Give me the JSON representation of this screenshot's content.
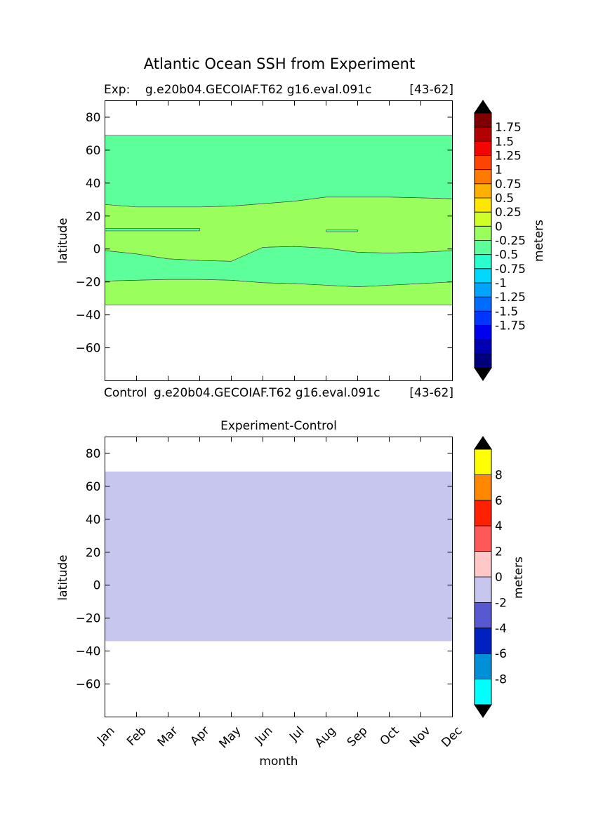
{
  "figure": {
    "suptitle": "Atlantic Ocean SSH from Experiment"
  },
  "chart_data": [
    {
      "type": "heatmap",
      "panel": "experiment",
      "title_left": "Exp:    g.e20b04.GECOIAF.T62 g16.eval.091c",
      "title_right": "[43-62]",
      "xlabel": "",
      "ylabel": "latitude",
      "ylim": [
        -80,
        90
      ],
      "yticks": [
        80,
        60,
        40,
        20,
        0,
        -20,
        -40,
        -60
      ],
      "x": [
        "Jan",
        "Feb",
        "Mar",
        "Apr",
        "May",
        "Jun",
        "Jul",
        "Aug",
        "Sep",
        "Oct",
        "Nov",
        "Dec"
      ],
      "colorbar": {
        "label": "meters",
        "tick_labels": [
          "1.75",
          "1.5",
          "1.25",
          "1",
          "0.75",
          "0.5",
          "0.25",
          "0",
          "-0.25",
          "-0.5",
          "-0.75",
          "-1",
          "-1.25",
          "-1.5",
          "-1.75"
        ],
        "levels": [
          -2,
          -1.75,
          -1.5,
          -1.25,
          -1,
          -0.75,
          -0.5,
          -0.25,
          0,
          0.25,
          0.5,
          0.75,
          1,
          1.25,
          1.5,
          1.75,
          2
        ],
        "colors": [
          "#00007f",
          "#0000b2",
          "#0000f1",
          "#0034ff",
          "#006cff",
          "#00a4ff",
          "#00d8ff",
          "#29ffce",
          "#5dff9a",
          "#9aff5d",
          "#ceff29",
          "#ffe600",
          "#ffb000",
          "#ff7a00",
          "#ff4300",
          "#f10700",
          "#b20000",
          "#7f0000"
        ],
        "extend_colors": [
          "#000000",
          "#000000"
        ]
      },
      "data_extent": {
        "lat_min": -34,
        "lat_max": 69
      },
      "regions": [
        {
          "name": "north",
          "range": "-0.25 to 0",
          "color": "#5dff9a",
          "lat_top": 69,
          "lat_bottom": [
            27,
            25.5,
            25.5,
            25.5,
            26,
            27.5,
            29,
            31.5,
            31.5,
            31.5,
            31,
            30.5
          ]
        },
        {
          "name": "tropical",
          "range": "0 to 0.25",
          "color": "#9aff5d",
          "lat_top": [
            27,
            25.5,
            25.5,
            25.5,
            26,
            27.5,
            29,
            31.5,
            31.5,
            31.5,
            31,
            30.5
          ],
          "lat_bottom": [
            -1,
            -3,
            -6,
            -7,
            -7.5,
            1,
            1.5,
            0.5,
            -2,
            -2.5,
            -2,
            -1
          ]
        },
        {
          "name": "south-tropical",
          "range": "-0.25 to 0",
          "color": "#5dff9a",
          "lat_top": [
            -1,
            -3,
            -6,
            -7,
            -7.5,
            1,
            1.5,
            0.5,
            -2,
            -2.5,
            -2,
            -1
          ],
          "lat_bottom": [
            -19.5,
            -19,
            -18.5,
            -18.5,
            -19,
            -20.5,
            -21,
            -22,
            -23,
            -22,
            -21,
            -20
          ]
        },
        {
          "name": "south",
          "range": "0 to 0.25",
          "color": "#9aff5d",
          "lat_top": [
            -19.5,
            -19,
            -18.5,
            -18.5,
            -19,
            -20.5,
            -21,
            -22,
            -23,
            -22,
            -21,
            -20
          ],
          "lat_bottom": -34
        }
      ],
      "small_patches": [
        {
          "color": "#5dff9a",
          "month_start": "Jan",
          "month_end": "Apr",
          "lat": [
            11,
            12.5
          ]
        },
        {
          "color": "#5dff9a",
          "month_start": "Aug",
          "month_end": "Sep",
          "lat": [
            10.5,
            11.5
          ]
        }
      ]
    },
    {
      "type": "heatmap",
      "panel": "difference",
      "subtitle_left": "Control",
      "subtitle_mid": "g.e20b04.GECOIAF.T62 g16.eval.091c",
      "subtitle_right": "[43-62]",
      "title": "Experiment-Control",
      "xlabel": "month",
      "ylabel": "latitude",
      "ylim": [
        -80,
        90
      ],
      "yticks": [
        80,
        60,
        40,
        20,
        0,
        -20,
        -40,
        -60
      ],
      "x": [
        "Jan",
        "Feb",
        "Mar",
        "Apr",
        "May",
        "Jun",
        "Jul",
        "Aug",
        "Sep",
        "Oct",
        "Nov",
        "Dec"
      ],
      "colorbar": {
        "label": "meters",
        "tick_labels": [
          "8",
          "6",
          "4",
          "2",
          "0",
          "-2",
          "-4",
          "-6",
          "-8"
        ],
        "levels": [
          -10,
          -8,
          -6,
          -4,
          -2,
          0,
          2,
          4,
          6,
          8,
          10
        ],
        "colors": [
          "#00ffff",
          "#0090d8",
          "#0020c0",
          "#5858d0",
          "#c6c6ee",
          "#ffc8c8",
          "#ff5858",
          "#ff2000",
          "#ff8800",
          "#ffff00"
        ],
        "extend_colors": [
          "#000000",
          "#000000"
        ]
      },
      "data_extent": {
        "lat_min": -34,
        "lat_max": 69
      },
      "fill_value_range": "-2 to 0",
      "fill_color": "#c6c6ee"
    }
  ]
}
